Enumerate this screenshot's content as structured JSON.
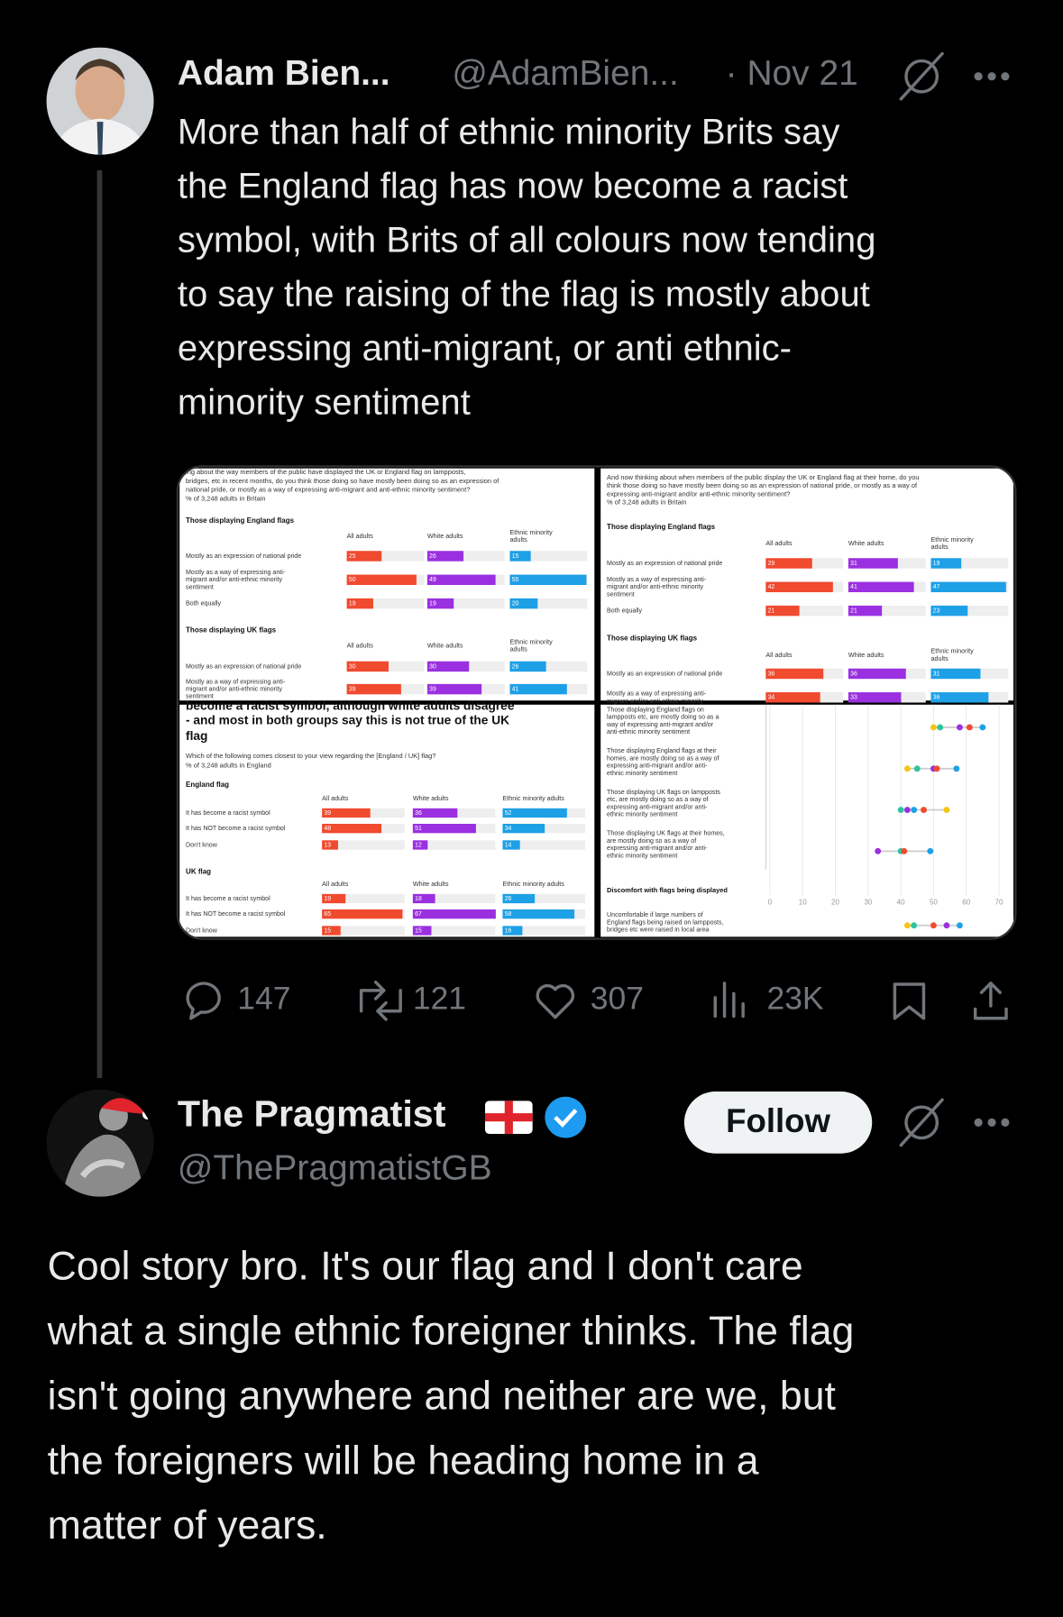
{
  "tweets": [
    {
      "name": "Adam Bien...",
      "handle": "@AdamBien...",
      "time": "· Nov 21",
      "text": [
        "More than half of ethnic minority Brits say",
        "the England flag has now become a racist",
        "symbol, with Brits of all colours now tending",
        "to say the raising of the flag is mostly about",
        "expressing anti-migrant, or anti ethnic-",
        "minority sentiment"
      ],
      "media": {
        "bar_colors": [
          "#f04a2f",
          "#9b30e0",
          "#1ea0e6"
        ],
        "images": [
          {
            "header": [
              "ing about the way members of the public have displayed the UK or England flag on lampposts,",
              "bridges, etc in recent months, do you think those doing so have mostly been doing so as an expression of",
              "national pride, or mostly as a way of expressing anti-migrant and anti-ethnic minority sentiment?",
              "% of 3,248 adults in Britain"
            ],
            "sections": [
              {
                "title": "Those displaying England flags",
                "columns": [
                  [
                    "All adults"
                  ],
                  [
                    "White adults"
                  ],
                  [
                    "Ethnic minority",
                    "adults"
                  ]
                ],
                "rows": [
                  {
                    "label": [
                      "Mostly as an expression of national pride"
                    ],
                    "values": [
                      25,
                      26,
                      15
                    ]
                  },
                  {
                    "label": [
                      "Mostly as a way of expressing anti-",
                      "migrant and/or anti-ethnic minority",
                      "sentiment"
                    ],
                    "values": [
                      50,
                      49,
                      55
                    ]
                  },
                  {
                    "label": [
                      "Both equally"
                    ],
                    "values": [
                      19,
                      19,
                      20
                    ]
                  }
                ]
              },
              {
                "title": "Those displaying UK flags",
                "columns": [
                  [
                    "All adults"
                  ],
                  [
                    "White adults"
                  ],
                  [
                    "Ethnic minority",
                    "adults"
                  ]
                ],
                "rows": [
                  {
                    "label": [
                      "Mostly as an expression of national pride"
                    ],
                    "values": [
                      30,
                      30,
                      26
                    ]
                  },
                  {
                    "label": [
                      "Mostly as a way of expressing anti-",
                      "migrant and/or anti-ethnic minority",
                      "sentiment"
                    ],
                    "values": [
                      39,
                      39,
                      41
                    ]
                  }
                ]
              }
            ]
          },
          {
            "header": [
              "And now thinking about when members of the public display the UK or England flag at their home, do you",
              "think those doing so have mostly been doing so as an expression of national pride, or mostly as a way of",
              "expressing anti-migrant and/or anti-ethnic minority sentiment?",
              "% of 3,248 adults in Britain"
            ],
            "sections": [
              {
                "title": "Those displaying England flags",
                "columns": [
                  [
                    "All adults"
                  ],
                  [
                    "White adults"
                  ],
                  [
                    "Ethnic minority",
                    "adults"
                  ]
                ],
                "rows": [
                  {
                    "label": [
                      "Mostly as an expression of national pride"
                    ],
                    "values": [
                      29,
                      31,
                      19
                    ]
                  },
                  {
                    "label": [
                      "Mostly as a way of expressing anti-",
                      "migrant and/or anti-ethnic minority",
                      "sentiment"
                    ],
                    "values": [
                      42,
                      41,
                      47
                    ]
                  },
                  {
                    "label": [
                      "Both equally"
                    ],
                    "values": [
                      21,
                      21,
                      23
                    ]
                  }
                ]
              },
              {
                "title": "Those displaying UK flags",
                "columns": [
                  [
                    "All adults"
                  ],
                  [
                    "White adults"
                  ],
                  [
                    "Ethnic minority",
                    "adults"
                  ]
                ],
                "rows": [
                  {
                    "label": [
                      "Mostly as an expression of national pride"
                    ],
                    "values": [
                      36,
                      36,
                      31
                    ]
                  },
                  {
                    "label": [
                      "Mostly as a way of expressing anti-",
                      "migrant and/or anti-ethnic minority"
                    ],
                    "values": [
                      34,
                      33,
                      36
                    ]
                  }
                ]
              }
            ]
          },
          {
            "title": [
              "become a racist symbol, although white adults disagree",
              "- and most in both groups say this is not true of the UK",
              "flag"
            ],
            "header": [
              "Which of the following comes closest to your view regarding the [England / UK] flag?",
              "% of 3,248 adults in England"
            ],
            "sections": [
              {
                "title": "England flag",
                "columns": [
                  [
                    "All adults"
                  ],
                  [
                    "White adults"
                  ],
                  [
                    "Ethnic minority adults"
                  ]
                ],
                "rows": [
                  {
                    "label": [
                      "It has become a racist symbol"
                    ],
                    "values": [
                      39,
                      36,
                      52
                    ]
                  },
                  {
                    "label": [
                      "It has NOT become a racist symbol"
                    ],
                    "values": [
                      48,
                      51,
                      34
                    ]
                  },
                  {
                    "label": [
                      "Don't know"
                    ],
                    "values": [
                      13,
                      12,
                      14
                    ]
                  }
                ]
              },
              {
                "title": "UK flag",
                "columns": [
                  [
                    "All adults"
                  ],
                  [
                    "White adults"
                  ],
                  [
                    "Ethnic minority adults"
                  ]
                ],
                "rows": [
                  {
                    "label": [
                      "It has become a racist symbol"
                    ],
                    "values": [
                      19,
                      18,
                      26
                    ]
                  },
                  {
                    "label": [
                      "It has NOT become a racist symbol"
                    ],
                    "values": [
                      65,
                      67,
                      58
                    ]
                  },
                  {
                    "label": [
                      "Don't know"
                    ],
                    "values": [
                      15,
                      15,
                      16
                    ]
                  }
                ]
              }
            ]
          },
          {
            "plot": {
              "dot_colors": [
                "#f5c518",
                "#2ec4a0",
                "#9b30e0",
                "#f04a2f",
                "#1ea0e6"
              ],
              "xlim": [
                0,
                70
              ],
              "xticks": [
                0,
                10,
                20,
                30,
                40,
                50,
                60,
                70
              ],
              "group_title": "Discomfort with flags being displayed",
              "rows": [
                {
                  "label": [
                    "Those displaying England flags on",
                    "lampposts etc, are mostly doing so as a",
                    "way of expressing anti-migrant and/or",
                    "anti-ethnic minority sentiment"
                  ],
                  "values": [
                    50,
                    52,
                    58,
                    61,
                    65
                  ]
                },
                {
                  "label": [
                    "Those displaying England flags at their",
                    "homes, are mostly doing so as a way of",
                    "expressing anti-migrant and/or anti-",
                    "ethnic minority sentiment"
                  ],
                  "values": [
                    42,
                    45,
                    50,
                    51,
                    57
                  ]
                },
                {
                  "label": [
                    "Those displaying UK flags on lampposts",
                    "etc, are mostly doing so as a way of",
                    "expressing anti-migrant and/or anti-",
                    "ethnic minority sentiment"
                  ],
                  "values": [
                    54,
                    40,
                    42,
                    47,
                    44
                  ]
                },
                {
                  "label": [
                    "Those displaying UK flags at their homes,",
                    "are mostly doing so as a way of",
                    "expressing anti-migrant and/or anti-",
                    "ethnic minority sentiment"
                  ],
                  "values": [
                    null,
                    40,
                    33,
                    41,
                    49
                  ]
                },
                {
                  "label": [
                    "Uncomfortable if large numbers of",
                    "England flags being raised on lampposts,",
                    "bridges etc were raised in local area"
                  ],
                  "values": [
                    42,
                    44,
                    54,
                    50,
                    58
                  ]
                }
              ]
            }
          }
        ]
      },
      "stats": {
        "replies": "147",
        "reposts": "121",
        "likes": "307",
        "views": "23K"
      }
    },
    {
      "name": "The Pragmatist",
      "handle": "@ThePragmatistGB",
      "follow": "Follow",
      "text": [
        "Cool story bro. It's our flag and I don't care",
        "what a single ethnic foreigner thinks. The flag",
        "isn't going anywhere and neither are we, but",
        "the foreigners will be heading home in a",
        "matter of years."
      ]
    }
  ]
}
